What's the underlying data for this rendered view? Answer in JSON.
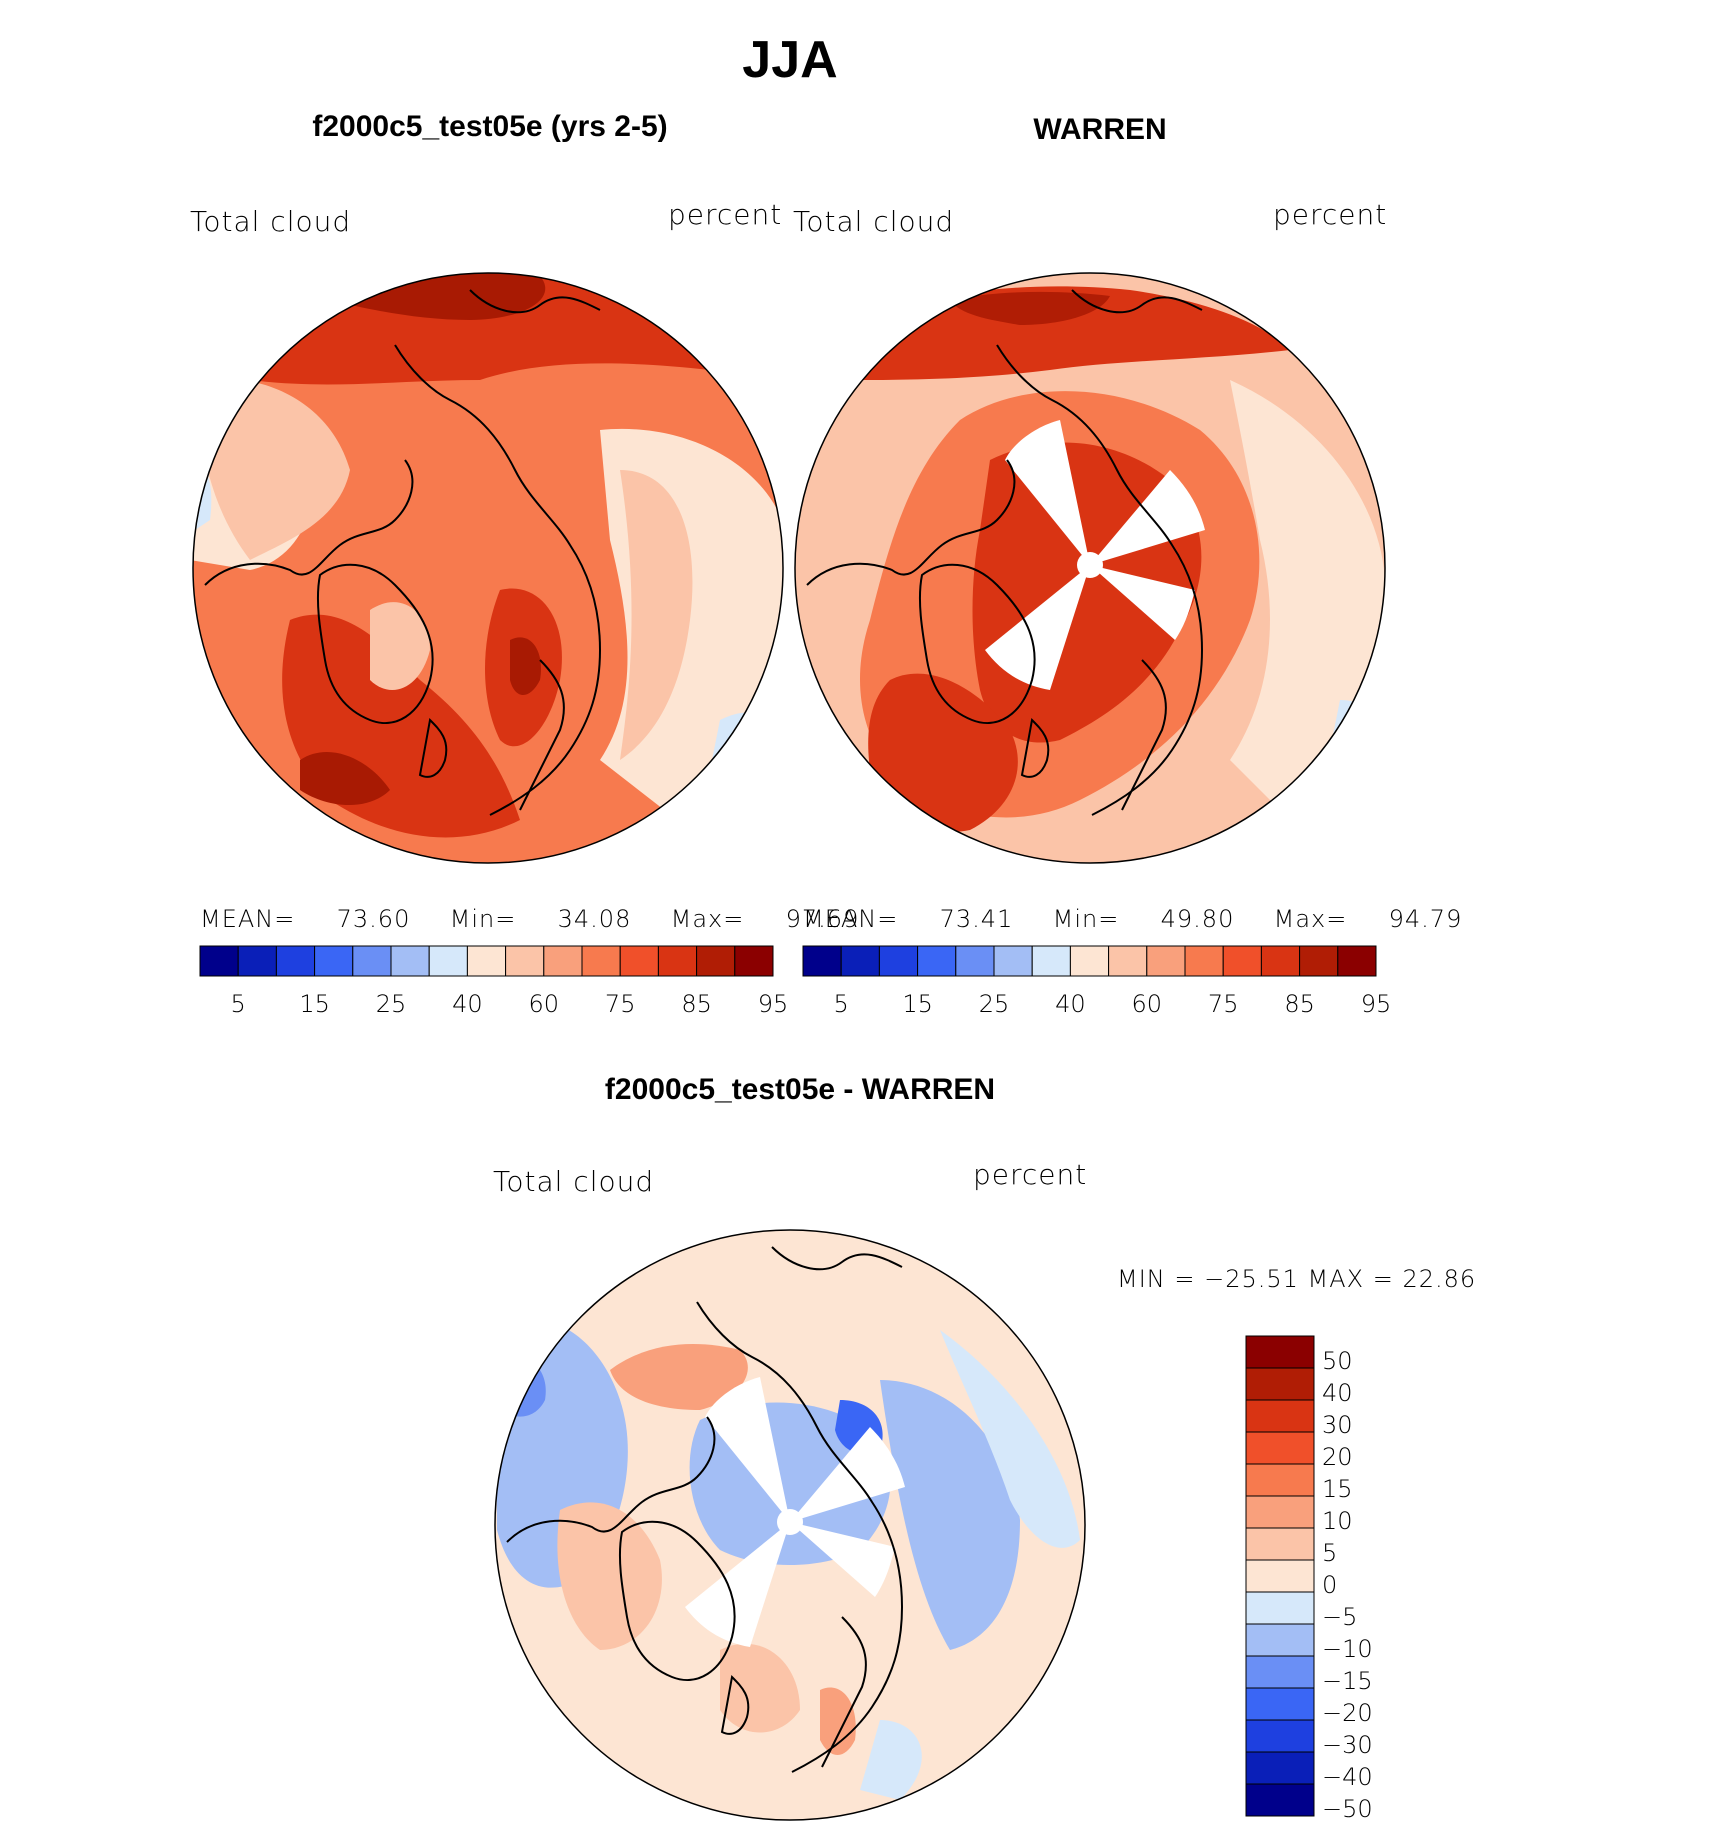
{
  "figure": {
    "title": "JJA",
    "panels": [
      {
        "id": "model",
        "title": "f2000c5_test05e (yrs 2-5)",
        "left_label": "Total cloud",
        "right_label": "percent",
        "mean_label": "MEAN=",
        "mean_value": "73.60",
        "min_label": "Min=",
        "min_value": "34.08",
        "max_label": "Max=",
        "max_value": "97.69"
      },
      {
        "id": "obs",
        "title": "WARREN",
        "left_label": "Total cloud",
        "right_label": "percent",
        "mean_label": "MEAN=",
        "mean_value": "73.41",
        "min_label": "Min=",
        "min_value": "49.80",
        "max_label": "Max=",
        "max_value": "94.79"
      },
      {
        "id": "diff",
        "title": "f2000c5_test05e - WARREN",
        "left_label": "Total cloud",
        "right_label": "percent",
        "minmax_text": "MIN = −25.51 MAX =   22.86"
      }
    ],
    "abs_colorbar": {
      "colors": [
        "#00008b",
        "#0a1fb8",
        "#1e40e0",
        "#3a66f5",
        "#6a8ff5",
        "#a3bef5",
        "#d6e8fa",
        "#fde5d3",
        "#fbc4a8",
        "#f9a07c",
        "#f77a4e",
        "#f0502a",
        "#d93413",
        "#b01d05",
        "#8b0000"
      ],
      "tick_labels": [
        "5",
        "15",
        "25",
        "40",
        "60",
        "75",
        "85",
        "95"
      ]
    },
    "diff_colorbar": {
      "colors": [
        "#8b0000",
        "#b01d05",
        "#d93413",
        "#f0502a",
        "#f77a4e",
        "#f9a07c",
        "#fbc4a8",
        "#fde5d3",
        "#d6e8fa",
        "#a3bef5",
        "#6a8ff5",
        "#3a66f5",
        "#1e40e0",
        "#0a1fb8",
        "#00008b"
      ],
      "tick_labels": [
        "50",
        "40",
        "30",
        "20",
        "15",
        "10",
        "5",
        "0",
        "−5",
        "−10",
        "−15",
        "−20",
        "−30",
        "−40",
        "−50"
      ]
    },
    "map_colors": {
      "model": {
        "base": "#f77a4e",
        "high": "#d93413",
        "max": "#a81a03",
        "low": "#fbc4a8",
        "lower": "#fde5d3",
        "lowest": "#d6e8fa"
      },
      "obs": {
        "base": "#f77a4e",
        "high": "#d93413",
        "max": "#b01d05",
        "low": "#fbc4a8",
        "lower": "#fde5d3",
        "lowest": "#d6e8fa"
      },
      "diff": {
        "base": "#fde5d3",
        "pos1": "#fbc4a8",
        "pos2": "#f9a07c",
        "neg1": "#d6e8fa",
        "neg2": "#a3bef5",
        "neg3": "#6a8ff5",
        "neg4": "#3a66f5"
      }
    }
  }
}
